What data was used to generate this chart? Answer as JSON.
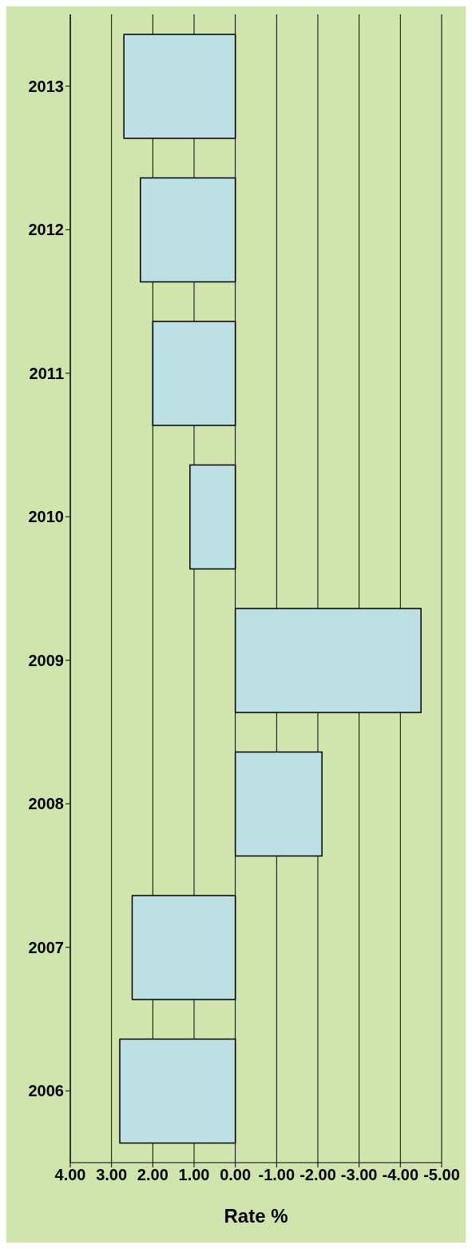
{
  "chart_data": {
    "type": "bar",
    "orientation": "horizontal",
    "xlabel": "Rate %",
    "categories": [
      "2013",
      "2012",
      "2011",
      "2010",
      "2009",
      "2008",
      "2007",
      "2006"
    ],
    "values": [
      2.7,
      2.3,
      2.0,
      1.1,
      -4.5,
      -2.1,
      2.5,
      2.8
    ],
    "color": "#bde0e4",
    "xlim": [
      4,
      -5
    ],
    "xticks": [
      {
        "value": 4,
        "label": "4.00"
      },
      {
        "value": 3,
        "label": "3.00"
      },
      {
        "value": 2,
        "label": "2.00"
      },
      {
        "value": 1,
        "label": "1.00"
      },
      {
        "value": 0,
        "label": "0.00"
      },
      {
        "value": -1,
        "label": "-1.00"
      },
      {
        "value": -2,
        "label": "-2.00"
      },
      {
        "value": -3,
        "label": "-3.00"
      },
      {
        "value": -4,
        "label": "-4.00"
      },
      {
        "value": -5,
        "label": "-5.00"
      }
    ],
    "grid": "x"
  }
}
